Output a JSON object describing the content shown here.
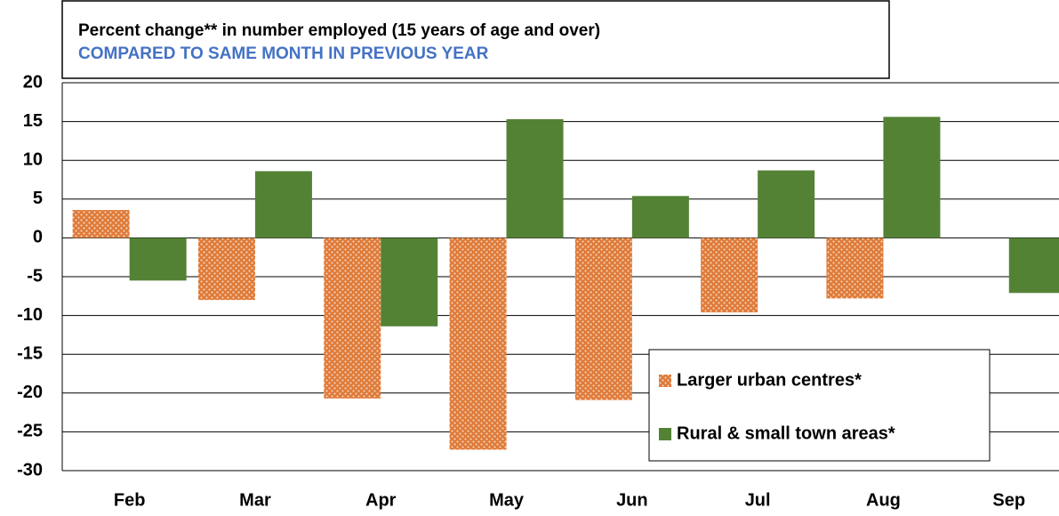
{
  "chart_data": {
    "type": "bar",
    "title": "Percent change** in number employed (15 years of age and over)",
    "subtitle": "COMPARED TO SAME MONTH IN PREVIOUS YEAR",
    "categories": [
      "Feb",
      "Mar",
      "Apr",
      "May",
      "Jun",
      "Jul",
      "Aug",
      "Sep"
    ],
    "series": [
      {
        "name": "Larger urban centres*",
        "color": "#e07b39",
        "pattern": "dotted",
        "values": [
          3.6,
          -8,
          -20.7,
          -27.3,
          -20.9,
          -9.6,
          -7.8,
          null
        ]
      },
      {
        "name": "Rural & small town areas*",
        "color": "#548235",
        "values": [
          -5.5,
          8.6,
          -11.4,
          15.3,
          5.4,
          8.7,
          15.6,
          -7.1
        ]
      }
    ],
    "ylim": [
      -30,
      20
    ],
    "yticks": [
      -30,
      -25,
      -20,
      -15,
      -10,
      -5,
      0,
      5,
      10,
      15,
      20
    ],
    "grid": true,
    "legend": "lower right"
  }
}
